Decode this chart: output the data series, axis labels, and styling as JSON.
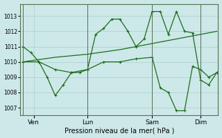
{
  "xlabel": "Pression niveau de la mer( hPa )",
  "bg_color": "#cde8e8",
  "grid_color": "#aacece",
  "line_color": "#1a6b1a",
  "ylim": [
    1006.5,
    1013.8
  ],
  "xlim": [
    -2,
    145
  ],
  "x_ticks": [
    8,
    48,
    96,
    132
  ],
  "x_tick_labels": [
    "Ven",
    "Lun",
    "Sam",
    "Dim"
  ],
  "vlines": [
    0,
    48,
    96,
    132
  ],
  "line1_x": [
    0,
    6,
    12,
    18,
    24,
    30,
    36,
    42,
    48,
    54,
    60,
    66,
    72,
    78,
    84,
    90,
    96,
    102,
    108,
    114,
    120,
    126,
    132,
    138,
    144
  ],
  "line1_y": [
    1011.0,
    1010.6,
    1010.0,
    1009.0,
    1007.8,
    1008.5,
    1009.3,
    1009.3,
    1009.5,
    1011.8,
    1012.2,
    1012.8,
    1012.8,
    1012.0,
    1011.0,
    1011.5,
    1013.3,
    1013.3,
    1011.8,
    1013.3,
    1012.0,
    1011.9,
    1008.8,
    1008.5,
    1009.3
  ],
  "line2_x": [
    0,
    24,
    48,
    72,
    96,
    120,
    144
  ],
  "line2_y": [
    1010.0,
    1010.3,
    1010.5,
    1010.8,
    1011.2,
    1011.6,
    1012.0
  ],
  "line3_x": [
    0,
    12,
    24,
    36,
    48,
    60,
    72,
    84,
    96,
    102,
    108,
    114,
    120,
    126,
    132,
    138,
    144
  ],
  "line3_y": [
    1010.0,
    1010.0,
    1009.5,
    1009.3,
    1009.5,
    1010.0,
    1010.0,
    1010.2,
    1010.3,
    1008.3,
    1008.0,
    1006.8,
    1006.8,
    1009.7,
    1009.5,
    1009.0,
    1009.3
  ]
}
